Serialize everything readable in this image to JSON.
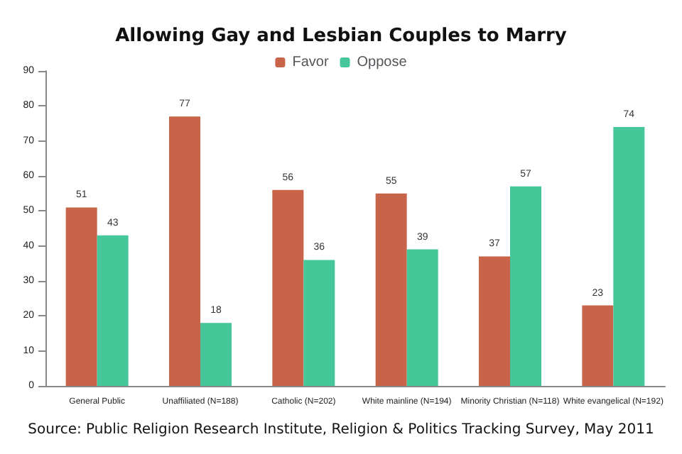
{
  "chart_data": {
    "type": "bar",
    "title": "Allowing Gay and Lesbian Couples to Marry",
    "categories": [
      "General Public",
      "Unaffiliated (N=188)",
      "Catholic (N=202)",
      "White mainline (N=194)",
      "Minority Christian (N=118)",
      "White evangelical (N=192)"
    ],
    "series": [
      {
        "name": "Favor",
        "color": "#c8644a",
        "values": [
          51,
          77,
          56,
          55,
          37,
          23
        ]
      },
      {
        "name": "Oppose",
        "color": "#45c79a",
        "values": [
          43,
          18,
          36,
          39,
          57,
          74
        ]
      }
    ],
    "ylim": [
      0,
      90
    ],
    "yticks": [
      0,
      10,
      20,
      30,
      40,
      50,
      60,
      70,
      80,
      90
    ],
    "grid": false,
    "legend": "top",
    "data_labels": true,
    "annotations": [
      "Source: Public Religion Research Institute, Religion & Politics Tracking Survey, May 2011"
    ]
  }
}
